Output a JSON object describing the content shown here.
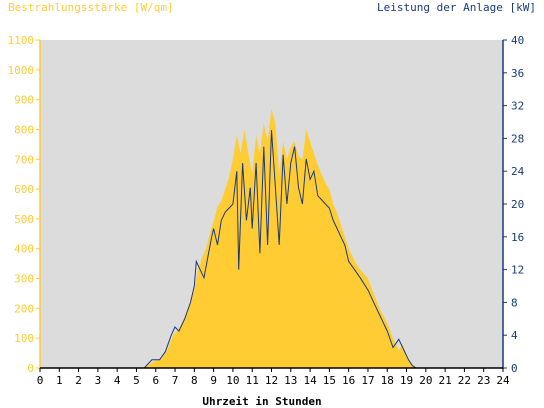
{
  "chart_data": {
    "type": "area",
    "left_axis_title": "Bestrahlungsstärke [W/qm]",
    "right_axis_title": "Leistung der Anlage [kW]",
    "xlabel": "Uhrzeit in Stunden",
    "xlim": [
      0,
      24
    ],
    "ylim_left": [
      0,
      1100
    ],
    "ylim_right": [
      0,
      40
    ],
    "x_ticks": [
      "0",
      "1",
      "2",
      "3",
      "4",
      "5",
      "6",
      "7",
      "8",
      "9",
      "10",
      "11",
      "12",
      "13",
      "14",
      "15",
      "16",
      "17",
      "18",
      "19",
      "20",
      "21",
      "22",
      "23",
      "24"
    ],
    "y_left_ticks": [
      "0",
      "100",
      "200",
      "300",
      "400",
      "500",
      "600",
      "700",
      "800",
      "900",
      "1000",
      "1100"
    ],
    "y_right_ticks": [
      "0",
      "4",
      "8",
      "12",
      "16",
      "20",
      "24",
      "28",
      "32",
      "36",
      "40"
    ],
    "grid": false,
    "colors": {
      "irradiance_fill": "#ffcc33",
      "power_line": "#1a3a7a",
      "plot_background": "#dcdcdc",
      "left_axis": "#ffcc33",
      "right_axis": "#1a3a7a",
      "bottom_axis": "#000000"
    },
    "series": [
      {
        "name": "Bestrahlungsstärke [W/qm]",
        "kind": "area",
        "axis": "left",
        "points": [
          [
            0,
            0
          ],
          [
            5.3,
            0
          ],
          [
            5.6,
            10
          ],
          [
            6.0,
            25
          ],
          [
            6.3,
            30
          ],
          [
            6.6,
            60
          ],
          [
            6.9,
            110
          ],
          [
            7.2,
            130
          ],
          [
            7.5,
            170
          ],
          [
            7.8,
            220
          ],
          [
            8.0,
            260
          ],
          [
            8.2,
            330
          ],
          [
            8.4,
            370
          ],
          [
            8.6,
            400
          ],
          [
            8.8,
            450
          ],
          [
            9.0,
            490
          ],
          [
            9.2,
            540
          ],
          [
            9.4,
            560
          ],
          [
            9.6,
            600
          ],
          [
            9.8,
            640
          ],
          [
            10.0,
            700
          ],
          [
            10.2,
            780
          ],
          [
            10.4,
            720
          ],
          [
            10.6,
            800
          ],
          [
            10.8,
            720
          ],
          [
            11.0,
            650
          ],
          [
            11.2,
            780
          ],
          [
            11.4,
            720
          ],
          [
            11.6,
            820
          ],
          [
            11.8,
            760
          ],
          [
            12.0,
            870
          ],
          [
            12.2,
            820
          ],
          [
            12.4,
            650
          ],
          [
            12.6,
            760
          ],
          [
            12.8,
            700
          ],
          [
            13.0,
            740
          ],
          [
            13.2,
            760
          ],
          [
            13.4,
            710
          ],
          [
            13.6,
            700
          ],
          [
            13.8,
            800
          ],
          [
            14.0,
            760
          ],
          [
            14.2,
            720
          ],
          [
            14.4,
            680
          ],
          [
            14.6,
            650
          ],
          [
            14.8,
            620
          ],
          [
            15.0,
            600
          ],
          [
            15.2,
            550
          ],
          [
            15.4,
            520
          ],
          [
            15.6,
            480
          ],
          [
            15.8,
            440
          ],
          [
            16.0,
            400
          ],
          [
            16.3,
            360
          ],
          [
            16.6,
            330
          ],
          [
            17.0,
            300
          ],
          [
            17.3,
            250
          ],
          [
            17.6,
            200
          ],
          [
            18.0,
            150
          ],
          [
            18.3,
            100
          ],
          [
            18.6,
            60
          ],
          [
            18.8,
            80
          ],
          [
            19.0,
            40
          ],
          [
            19.2,
            20
          ],
          [
            19.4,
            5
          ],
          [
            19.5,
            0
          ],
          [
            24,
            0
          ]
        ]
      },
      {
        "name": "Leistung der Anlage [kW]",
        "kind": "line",
        "axis": "right",
        "points": [
          [
            0,
            0
          ],
          [
            5.4,
            0
          ],
          [
            5.8,
            1
          ],
          [
            6.2,
            1
          ],
          [
            6.5,
            2
          ],
          [
            6.8,
            4
          ],
          [
            7.0,
            5
          ],
          [
            7.2,
            4.5
          ],
          [
            7.5,
            6
          ],
          [
            7.8,
            8
          ],
          [
            8.0,
            10
          ],
          [
            8.1,
            13
          ],
          [
            8.3,
            12
          ],
          [
            8.5,
            11
          ],
          [
            8.7,
            13.5
          ],
          [
            8.9,
            16
          ],
          [
            9.0,
            17
          ],
          [
            9.2,
            15
          ],
          [
            9.4,
            18
          ],
          [
            9.6,
            19
          ],
          [
            9.8,
            19.5
          ],
          [
            10.0,
            20
          ],
          [
            10.2,
            24
          ],
          [
            10.3,
            12
          ],
          [
            10.5,
            25
          ],
          [
            10.7,
            18
          ],
          [
            10.9,
            22
          ],
          [
            11.0,
            17
          ],
          [
            11.2,
            25
          ],
          [
            11.4,
            14
          ],
          [
            11.6,
            27
          ],
          [
            11.8,
            15
          ],
          [
            12.0,
            29
          ],
          [
            12.2,
            22
          ],
          [
            12.4,
            15
          ],
          [
            12.6,
            26
          ],
          [
            12.8,
            20
          ],
          [
            13.0,
            25
          ],
          [
            13.2,
            27
          ],
          [
            13.4,
            22
          ],
          [
            13.6,
            20
          ],
          [
            13.8,
            25.5
          ],
          [
            14.0,
            23
          ],
          [
            14.2,
            24
          ],
          [
            14.4,
            21
          ],
          [
            14.6,
            20.5
          ],
          [
            14.8,
            20
          ],
          [
            15.0,
            19.5
          ],
          [
            15.2,
            18
          ],
          [
            15.4,
            17
          ],
          [
            15.6,
            16
          ],
          [
            15.8,
            15
          ],
          [
            16.0,
            13
          ],
          [
            16.3,
            12
          ],
          [
            16.6,
            11
          ],
          [
            17.0,
            9.5
          ],
          [
            17.3,
            8
          ],
          [
            17.6,
            6.5
          ],
          [
            18.0,
            4.5
          ],
          [
            18.3,
            2.5
          ],
          [
            18.6,
            3.5
          ],
          [
            18.9,
            2
          ],
          [
            19.1,
            1
          ],
          [
            19.3,
            0.3
          ],
          [
            19.5,
            0
          ],
          [
            24,
            0
          ]
        ]
      }
    ]
  }
}
